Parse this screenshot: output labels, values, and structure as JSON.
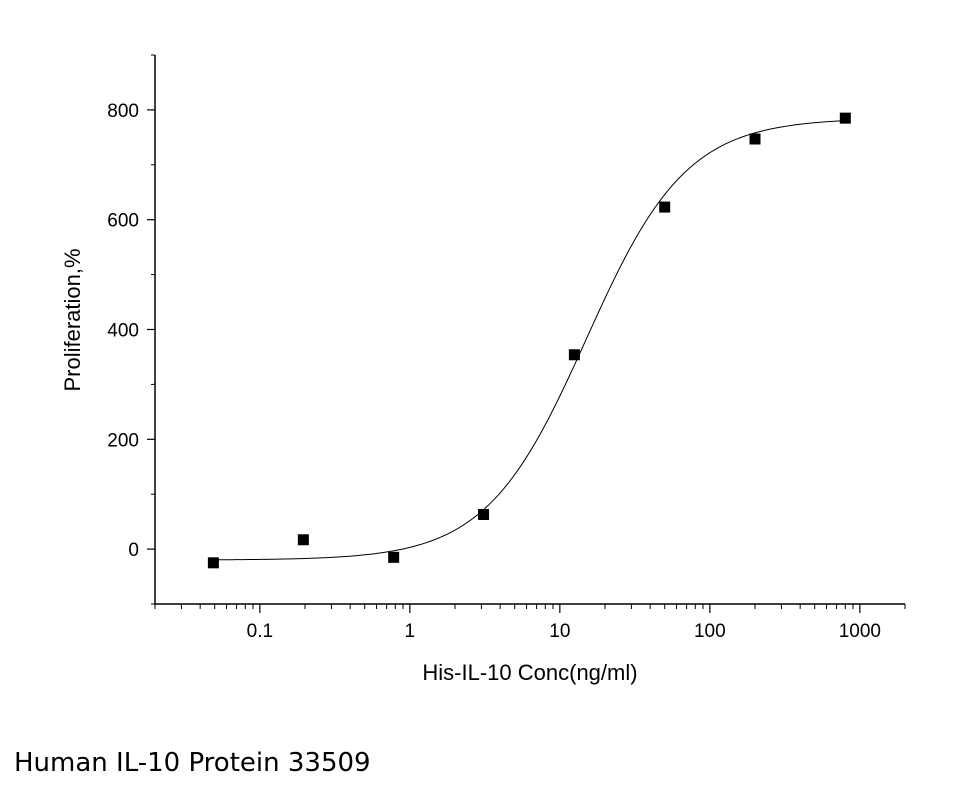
{
  "caption": "Human IL-10 Protein 33509",
  "chart_data": {
    "type": "scatter",
    "xlabel": "His-IL-10 Conc(ng/ml)",
    "ylabel": "Proliferation,%",
    "xscale": "log",
    "xlim": [
      0.02,
      2000
    ],
    "ylim": [
      -100,
      900
    ],
    "xticks": [
      0.1,
      1,
      10,
      100,
      1000
    ],
    "xtick_labels": [
      "0.1",
      "1",
      "10",
      "100",
      "1000"
    ],
    "yticks": [
      0,
      200,
      400,
      600,
      800
    ],
    "ytick_labels": [
      "0",
      "200",
      "400",
      "600",
      "800"
    ],
    "grid": false,
    "series": [
      {
        "points": [
          {
            "x": 0.049,
            "y": -25
          },
          {
            "x": 0.195,
            "y": 17
          },
          {
            "x": 0.78,
            "y": -15
          },
          {
            "x": 3.1,
            "y": 63
          },
          {
            "x": 12.5,
            "y": 354
          },
          {
            "x": 50,
            "y": 623
          },
          {
            "x": 200,
            "y": 747
          },
          {
            "x": 800,
            "y": 785
          }
        ],
        "marker": "square",
        "color": "#000000"
      }
    ],
    "fit_curve": {
      "model": "4PL",
      "bottom": -20,
      "top": 785,
      "ec50": 15,
      "hill": 1.3,
      "color": "#000000"
    }
  }
}
